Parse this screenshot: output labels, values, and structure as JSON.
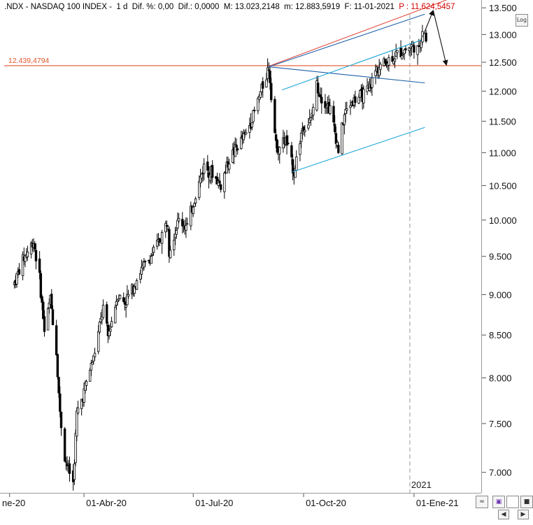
{
  "header": {
    "symbol": ".NDX - NASDAQ 100 INDEX -",
    "period": "1 d",
    "dif_pct": "Dif. %: 0,00",
    "dif": "Dif.: 0,0000",
    "max": "M: 13.023,2148",
    "min": "m: 12.883,5919",
    "date": "F: 11-01-2021",
    "price": "P : 11.624,5457"
  },
  "buttons": {
    "log": "Log",
    "zoom_icon": "wave-zoom-icon",
    "save_icon": "floppy-icon",
    "fill_icon": "square-fill-icon",
    "scroll_left_icon": "arrow-left-icon",
    "scroll_right_icon": "arrow-right-icon"
  },
  "level_label": "12.439,4794",
  "year_marker": "2021",
  "colors": {
    "candle": "#000000",
    "horizontal_level": "#e0552a",
    "channel": "#21a6d8",
    "trendline": "#1e5fa8",
    "upper_line": "#e04a3a",
    "price_text": "#d00000"
  },
  "chart_data": {
    "type": "candlestick",
    "title": ".NDX - NASDAQ 100 INDEX",
    "y_scale": "log",
    "ylim": [
      6800,
      13650
    ],
    "y_ticks": [
      "13.500",
      "13.000",
      "12.500",
      "12.000",
      "11.500",
      "11.000",
      "10.500",
      "10.000",
      "9.500",
      "9.000",
      "8.500",
      "8.000",
      "7.500",
      "7.000"
    ],
    "y_tick_values": [
      13500,
      13000,
      12500,
      12000,
      11500,
      11000,
      10500,
      10000,
      9500,
      9000,
      8500,
      8000,
      7500,
      7000
    ],
    "x_ticks": [
      "ne-20",
      "01-Abr-20",
      "01-Jul-20",
      "01-Oct-20",
      "01-Ene-21"
    ],
    "x_tick_dates": [
      "2020-01-30",
      "2020-04-01",
      "2020-07-01",
      "2020-10-01",
      "2021-01-01"
    ],
    "xlim": [
      "2020-01-22",
      "2021-02-26"
    ],
    "close_series": [
      {
        "date": "2020-02-03",
        "close": 9150
      },
      {
        "date": "2020-02-10",
        "close": 9450
      },
      {
        "date": "2020-02-19",
        "close": 9710
      },
      {
        "date": "2020-02-24",
        "close": 9200
      },
      {
        "date": "2020-02-28",
        "close": 8550
      },
      {
        "date": "2020-03-04",
        "close": 8950
      },
      {
        "date": "2020-03-09",
        "close": 8300
      },
      {
        "date": "2020-03-12",
        "close": 7600
      },
      {
        "date": "2020-03-16",
        "close": 7150
      },
      {
        "date": "2020-03-20",
        "close": 7000
      },
      {
        "date": "2020-03-23",
        "close": 6900
      },
      {
        "date": "2020-03-26",
        "close": 7600
      },
      {
        "date": "2020-03-31",
        "close": 7800
      },
      {
        "date": "2020-04-06",
        "close": 8100
      },
      {
        "date": "2020-04-09",
        "close": 8230
      },
      {
        "date": "2020-04-14",
        "close": 8600
      },
      {
        "date": "2020-04-17",
        "close": 8830
      },
      {
        "date": "2020-04-21",
        "close": 8480
      },
      {
        "date": "2020-04-29",
        "close": 9000
      },
      {
        "date": "2020-05-05",
        "close": 8900
      },
      {
        "date": "2020-05-12",
        "close": 9100
      },
      {
        "date": "2020-05-18",
        "close": 9300
      },
      {
        "date": "2020-05-27",
        "close": 9500
      },
      {
        "date": "2020-06-03",
        "close": 9720
      },
      {
        "date": "2020-06-10",
        "close": 10000
      },
      {
        "date": "2020-06-11",
        "close": 9600
      },
      {
        "date": "2020-06-19",
        "close": 10000
      },
      {
        "date": "2020-06-26",
        "close": 9900
      },
      {
        "date": "2020-07-02",
        "close": 10300
      },
      {
        "date": "2020-07-10",
        "close": 10800
      },
      {
        "date": "2020-07-16",
        "close": 10700
      },
      {
        "date": "2020-07-24",
        "close": 10500
      },
      {
        "date": "2020-07-31",
        "close": 10900
      },
      {
        "date": "2020-08-07",
        "close": 11100
      },
      {
        "date": "2020-08-14",
        "close": 11300
      },
      {
        "date": "2020-08-21",
        "close": 11650
      },
      {
        "date": "2020-08-28",
        "close": 12100
      },
      {
        "date": "2020-09-02",
        "close": 12420
      },
      {
        "date": "2020-09-08",
        "close": 11100
      },
      {
        "date": "2020-09-11",
        "close": 11100
      },
      {
        "date": "2020-09-16",
        "close": 11200
      },
      {
        "date": "2020-09-23",
        "close": 10700
      },
      {
        "date": "2020-09-30",
        "close": 11400
      },
      {
        "date": "2020-10-07",
        "close": 11500
      },
      {
        "date": "2020-10-12",
        "close": 12100
      },
      {
        "date": "2020-10-16",
        "close": 11900
      },
      {
        "date": "2020-10-23",
        "close": 11700
      },
      {
        "date": "2020-10-30",
        "close": 11050
      },
      {
        "date": "2020-11-04",
        "close": 11600
      },
      {
        "date": "2020-11-09",
        "close": 11800
      },
      {
        "date": "2020-11-16",
        "close": 11900
      },
      {
        "date": "2020-11-24",
        "close": 12000
      },
      {
        "date": "2020-12-01",
        "close": 12400
      },
      {
        "date": "2020-12-08",
        "close": 12500
      },
      {
        "date": "2020-12-15",
        "close": 12600
      },
      {
        "date": "2020-12-22",
        "close": 12700
      },
      {
        "date": "2020-12-31",
        "close": 12800
      },
      {
        "date": "2021-01-05",
        "close": 12700
      },
      {
        "date": "2021-01-08",
        "close": 13100
      },
      {
        "date": "2021-01-11",
        "close": 12900
      }
    ],
    "horizontal_level": 12439.4794,
    "lines": [
      {
        "name": "resistance",
        "color": "#e04a3a",
        "from": {
          "date": "2020-09-02",
          "value": 12430
        },
        "to": {
          "date": "2021-01-28",
          "value": 13650
        }
      },
      {
        "name": "trend-upper",
        "color": "#1e5fa8",
        "from": {
          "date": "2020-09-02",
          "value": 12420
        },
        "to": {
          "date": "2021-01-10",
          "value": 13380
        }
      },
      {
        "name": "trend-lower",
        "color": "#1e5fa8",
        "from": {
          "date": "2020-09-02",
          "value": 12420
        },
        "to": {
          "date": "2021-01-10",
          "value": 12140
        }
      },
      {
        "name": "channel-top",
        "color": "#21a6d8",
        "from": {
          "date": "2020-09-13",
          "value": 12020
        },
        "to": {
          "date": "2021-01-07",
          "value": 12900
        }
      },
      {
        "name": "channel-bottom",
        "color": "#21a6d8",
        "from": {
          "date": "2020-09-21",
          "value": 10700
        },
        "to": {
          "date": "2021-01-10",
          "value": 11400
        }
      }
    ],
    "projection": [
      {
        "date": "2021-01-08",
        "value": 12950
      },
      {
        "date": "2021-01-17",
        "value": 13450
      },
      {
        "date": "2021-01-28",
        "value": 12450
      }
    ]
  }
}
